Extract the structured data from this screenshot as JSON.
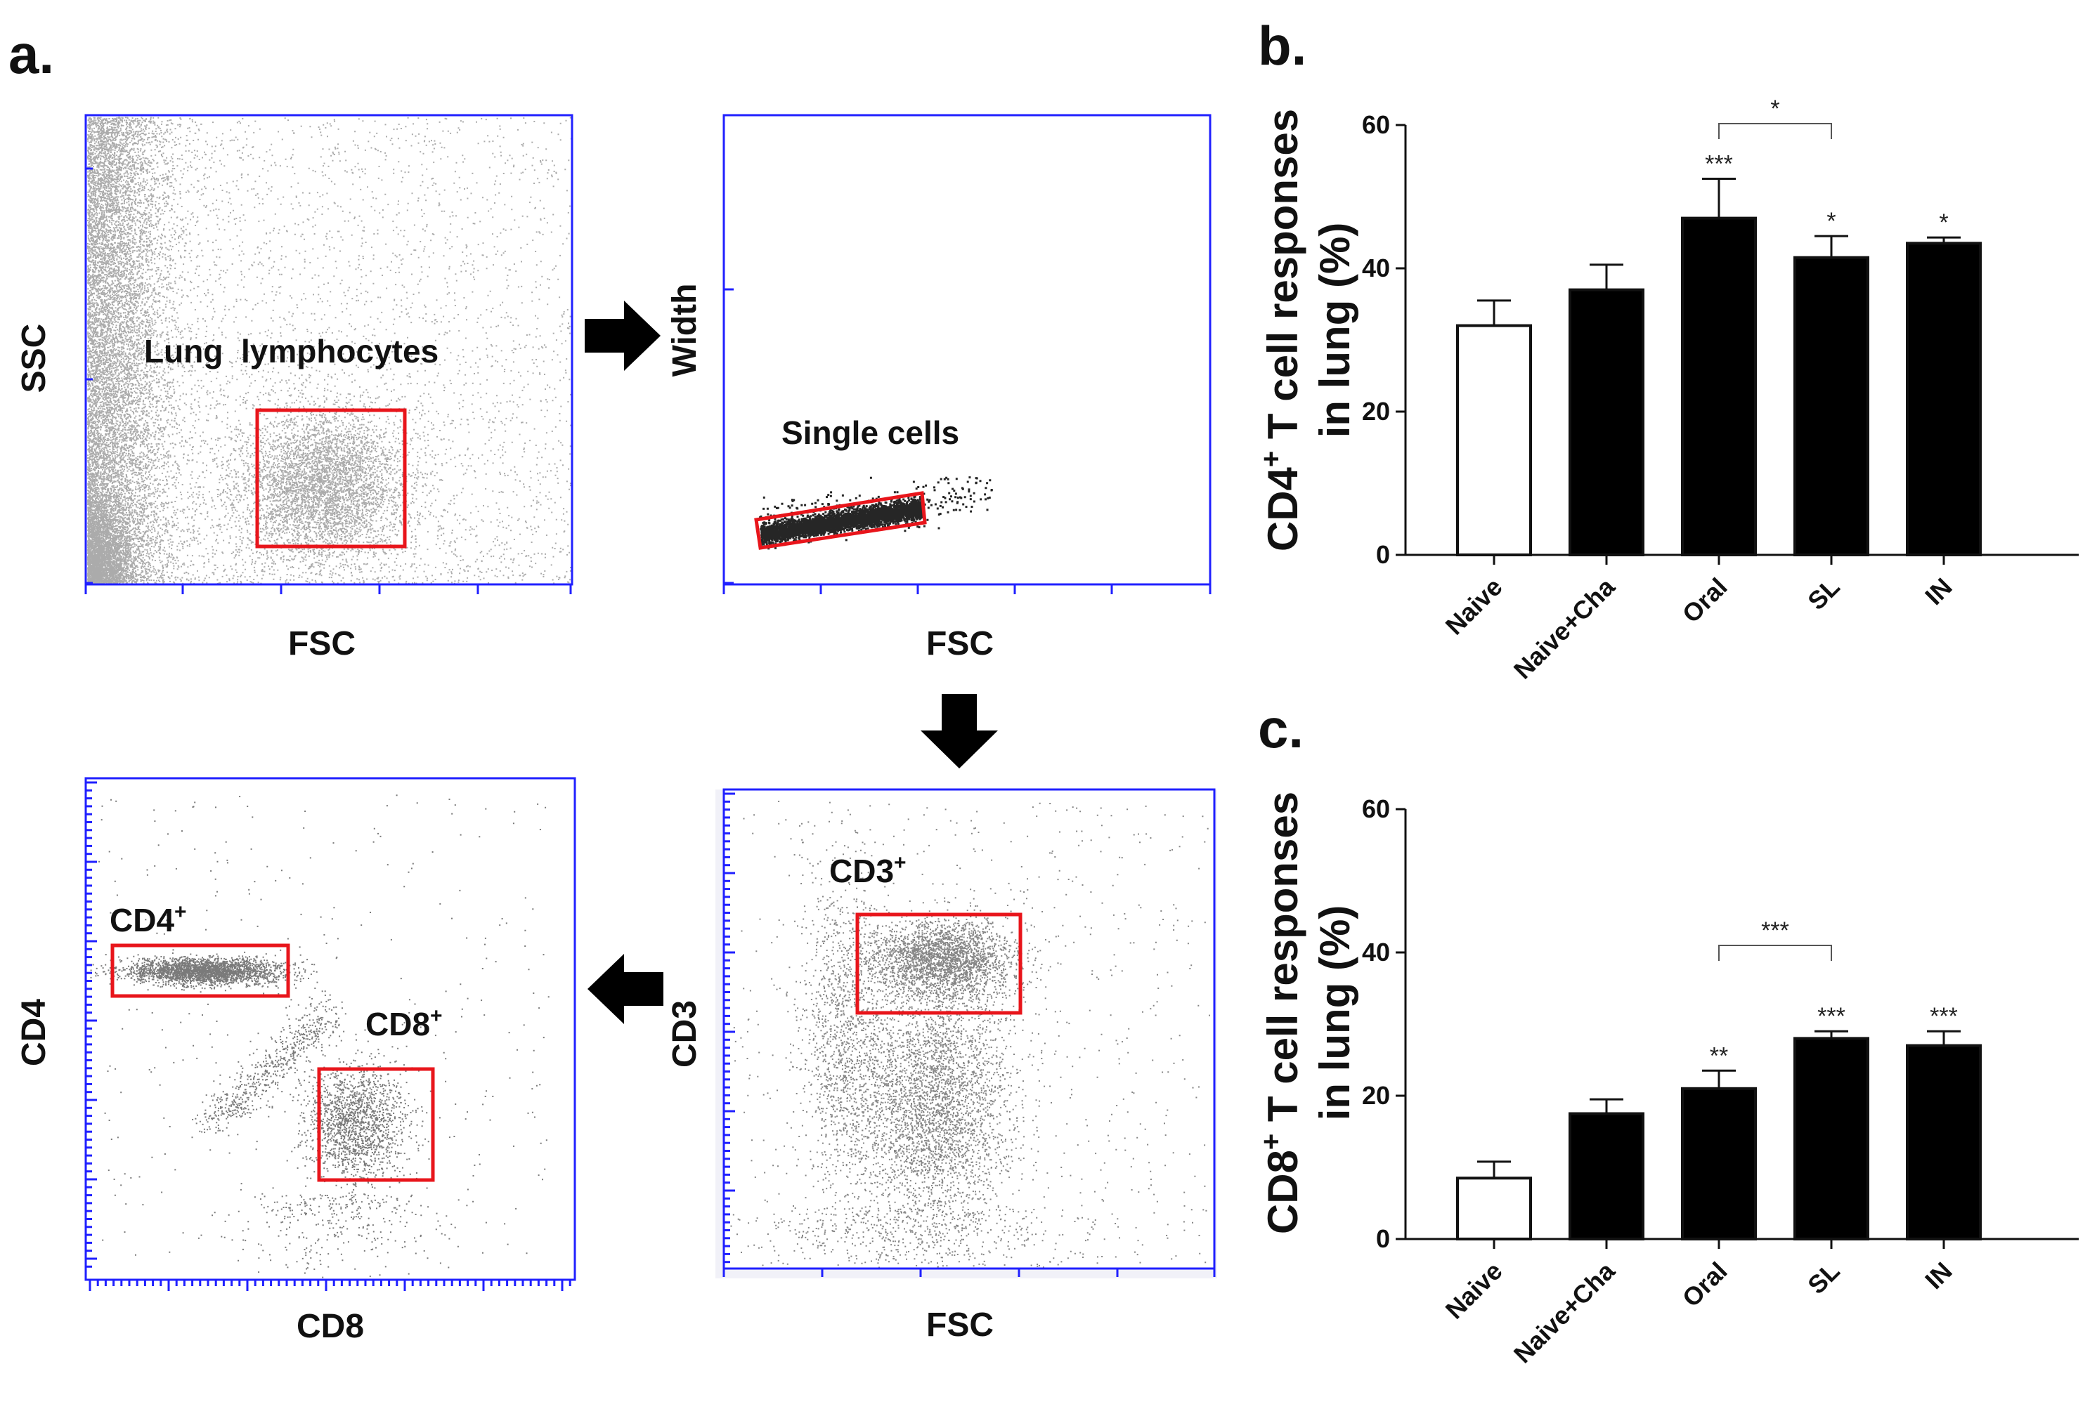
{
  "panel_labels": {
    "a": "a.",
    "b": "b.",
    "c": "c."
  },
  "colors": {
    "frame": "#2020ff",
    "gate": "#e8151b",
    "dots": "#333333",
    "bar_black": "#000000",
    "bar_white": "#ffffff"
  },
  "flow_plots": {
    "lymph": {
      "x_label": "FSC",
      "y_label": "SSC",
      "gate_label": "Lung  lymphocytes"
    },
    "single": {
      "x_label": "FSC",
      "y_label": "Width",
      "gate_label": "Single cells"
    },
    "cd3": {
      "x_label": "FSC",
      "y_label": "CD3",
      "gate_label": "CD3",
      "gate_sup": "+"
    },
    "cd4cd8": {
      "x_label": "CD8",
      "y_label": "CD4",
      "gate1_label": "CD4",
      "gate1_sup": "+",
      "gate2_label": "CD8",
      "gate2_sup": "+"
    }
  },
  "chart_data": [
    {
      "id": "b",
      "type": "bar",
      "categories": [
        "Naive",
        "Naive+Cha",
        "Oral",
        "SL",
        "IN"
      ],
      "values": [
        32,
        37,
        47,
        41.5,
        43.5
      ],
      "errors": [
        3.5,
        3.5,
        5.5,
        3,
        0.8
      ],
      "fills": [
        "#ffffff",
        "#000000",
        "#000000",
        "#000000",
        "#000000"
      ],
      "significance": [
        "",
        "",
        "***",
        "*",
        "*"
      ],
      "bracket": {
        "from": "Oral",
        "to": "SL",
        "label": "*"
      },
      "ylim": [
        0,
        60
      ],
      "yticks": [
        0,
        20,
        40,
        60
      ],
      "ylabel_main": "CD4",
      "ylabel_sup": "+",
      "ylabel_rest": " T cell responses",
      "ylabel_line2": "in lung (%)"
    },
    {
      "id": "c",
      "type": "bar",
      "categories": [
        "Naive",
        "Naive+Cha",
        "Oral",
        "SL",
        "IN"
      ],
      "values": [
        8.5,
        17.5,
        21,
        28,
        27
      ],
      "errors": [
        2.3,
        2,
        2.5,
        1,
        2
      ],
      "fills": [
        "#ffffff",
        "#000000",
        "#000000",
        "#000000",
        "#000000"
      ],
      "significance": [
        "",
        "",
        "**",
        "***",
        "***"
      ],
      "bracket": {
        "from": "Oral",
        "to": "SL",
        "label": "***"
      },
      "ylim": [
        0,
        60
      ],
      "yticks": [
        0,
        20,
        40,
        60
      ],
      "ylabel_main": "CD8",
      "ylabel_sup": "+",
      "ylabel_rest": " T cell responses",
      "ylabel_line2": "in lung (%)"
    }
  ]
}
